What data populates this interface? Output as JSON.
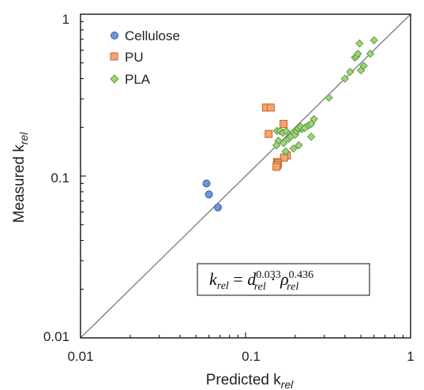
{
  "chart_data": {
    "type": "scatter",
    "xscale": "log",
    "yscale": "log",
    "xlim": [
      0.01,
      1
    ],
    "ylim": [
      0.01,
      1
    ],
    "xticks": [
      "0.01",
      "0.1",
      "1"
    ],
    "yticks": [
      "0.01",
      "0.1",
      "1"
    ],
    "xlabel": "Predicted k",
    "xlabel_sub": "rel",
    "ylabel": "Measured k",
    "ylabel_sub": "rel",
    "legend_position": "top-left",
    "reference_line": {
      "type": "y=x",
      "color": "#808080"
    },
    "equation": {
      "lhs": "k",
      "lhs_sub": "rel",
      "eq": " = ",
      "d": "d",
      "d_sub": "rel",
      "d_exp": "0.033",
      "dot": " · ",
      "rho": "ρ",
      "rho_sub": "rel",
      "rho_exp": "0.436"
    },
    "series": [
      {
        "name": "Cellulose",
        "marker": "circle",
        "fill": "#6f95d6",
        "stroke": "#3a5ea8",
        "points": [
          [
            0.058,
            0.09
          ],
          [
            0.06,
            0.077
          ],
          [
            0.068,
            0.064
          ]
        ]
      },
      {
        "name": "PU",
        "marker": "square",
        "fill": "#f4a46c",
        "stroke": "#c4622a",
        "points": [
          [
            0.133,
            0.265
          ],
          [
            0.142,
            0.265
          ],
          [
            0.138,
            0.182
          ],
          [
            0.17,
            0.21
          ],
          [
            0.178,
            0.134
          ],
          [
            0.171,
            0.13
          ],
          [
            0.155,
            0.122
          ],
          [
            0.157,
            0.12
          ],
          [
            0.156,
            0.117
          ],
          [
            0.154,
            0.114
          ]
        ]
      },
      {
        "name": "PLA",
        "marker": "diamond",
        "fill": "#9fd57a",
        "stroke": "#5e9b3d",
        "points": [
          [
            0.155,
            0.19
          ],
          [
            0.162,
            0.19
          ],
          [
            0.168,
            0.185
          ],
          [
            0.176,
            0.19
          ],
          [
            0.195,
            0.185
          ],
          [
            0.182,
            0.17
          ],
          [
            0.188,
            0.175
          ],
          [
            0.2,
            0.18
          ],
          [
            0.205,
            0.19
          ],
          [
            0.212,
            0.2
          ],
          [
            0.22,
            0.195
          ],
          [
            0.23,
            0.2
          ],
          [
            0.24,
            0.205
          ],
          [
            0.25,
            0.21
          ],
          [
            0.26,
            0.225
          ],
          [
            0.208,
            0.197
          ],
          [
            0.215,
            0.202
          ],
          [
            0.228,
            0.198
          ],
          [
            0.158,
            0.165
          ],
          [
            0.154,
            0.155
          ],
          [
            0.17,
            0.16
          ],
          [
            0.175,
            0.142
          ],
          [
            0.195,
            0.148
          ],
          [
            0.21,
            0.155
          ],
          [
            0.25,
            0.175
          ],
          [
            0.32,
            0.305
          ],
          [
            0.4,
            0.4
          ],
          [
            0.43,
            0.44
          ],
          [
            0.46,
            0.54
          ],
          [
            0.47,
            0.55
          ],
          [
            0.48,
            0.57
          ],
          [
            0.49,
            0.66
          ],
          [
            0.5,
            0.45
          ],
          [
            0.52,
            0.48
          ],
          [
            0.57,
            0.57
          ],
          [
            0.6,
            0.69
          ]
        ]
      }
    ]
  }
}
